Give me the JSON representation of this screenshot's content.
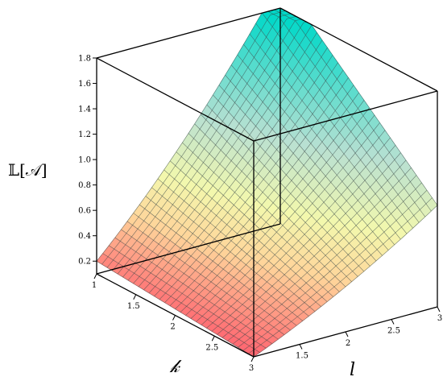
{
  "chart_data": {
    "type": "surface3d",
    "title": "",
    "zlabel": "𝕃[𝒜]",
    "xlabel": "𝓀",
    "ylabel": "l",
    "k_range": [
      1,
      3
    ],
    "l_range": [
      1,
      3
    ],
    "zlim": [
      0.1,
      1.8
    ],
    "k_ticks": [
      "1",
      "1.5",
      "2",
      "2.5",
      "3"
    ],
    "l_ticks": [
      "1.5",
      "2",
      "2.5",
      "3"
    ],
    "z_ticks": [
      "0.2",
      "0.4",
      "0.6",
      "0.8",
      "1.0",
      "1.2",
      "1.4",
      "1.6",
      "1.8"
    ],
    "surface_samples": [
      {
        "k": 1,
        "l": 1,
        "z": 0.2
      },
      {
        "k": 3,
        "l": 1,
        "z": 0.1
      },
      {
        "k": 3,
        "l": 3,
        "z": 0.9
      },
      {
        "k": 1,
        "l": 3,
        "z": 1.8
      }
    ],
    "grid_lines_per_axis": 30,
    "colors": {
      "low": "#ff6470",
      "mid_low": "#ffd49a",
      "mid": "#f3f8ad",
      "high_mid": "#b8e0d2",
      "high": "#00d8c8",
      "mesh": "#3a4a4a",
      "box": "#000000"
    }
  }
}
